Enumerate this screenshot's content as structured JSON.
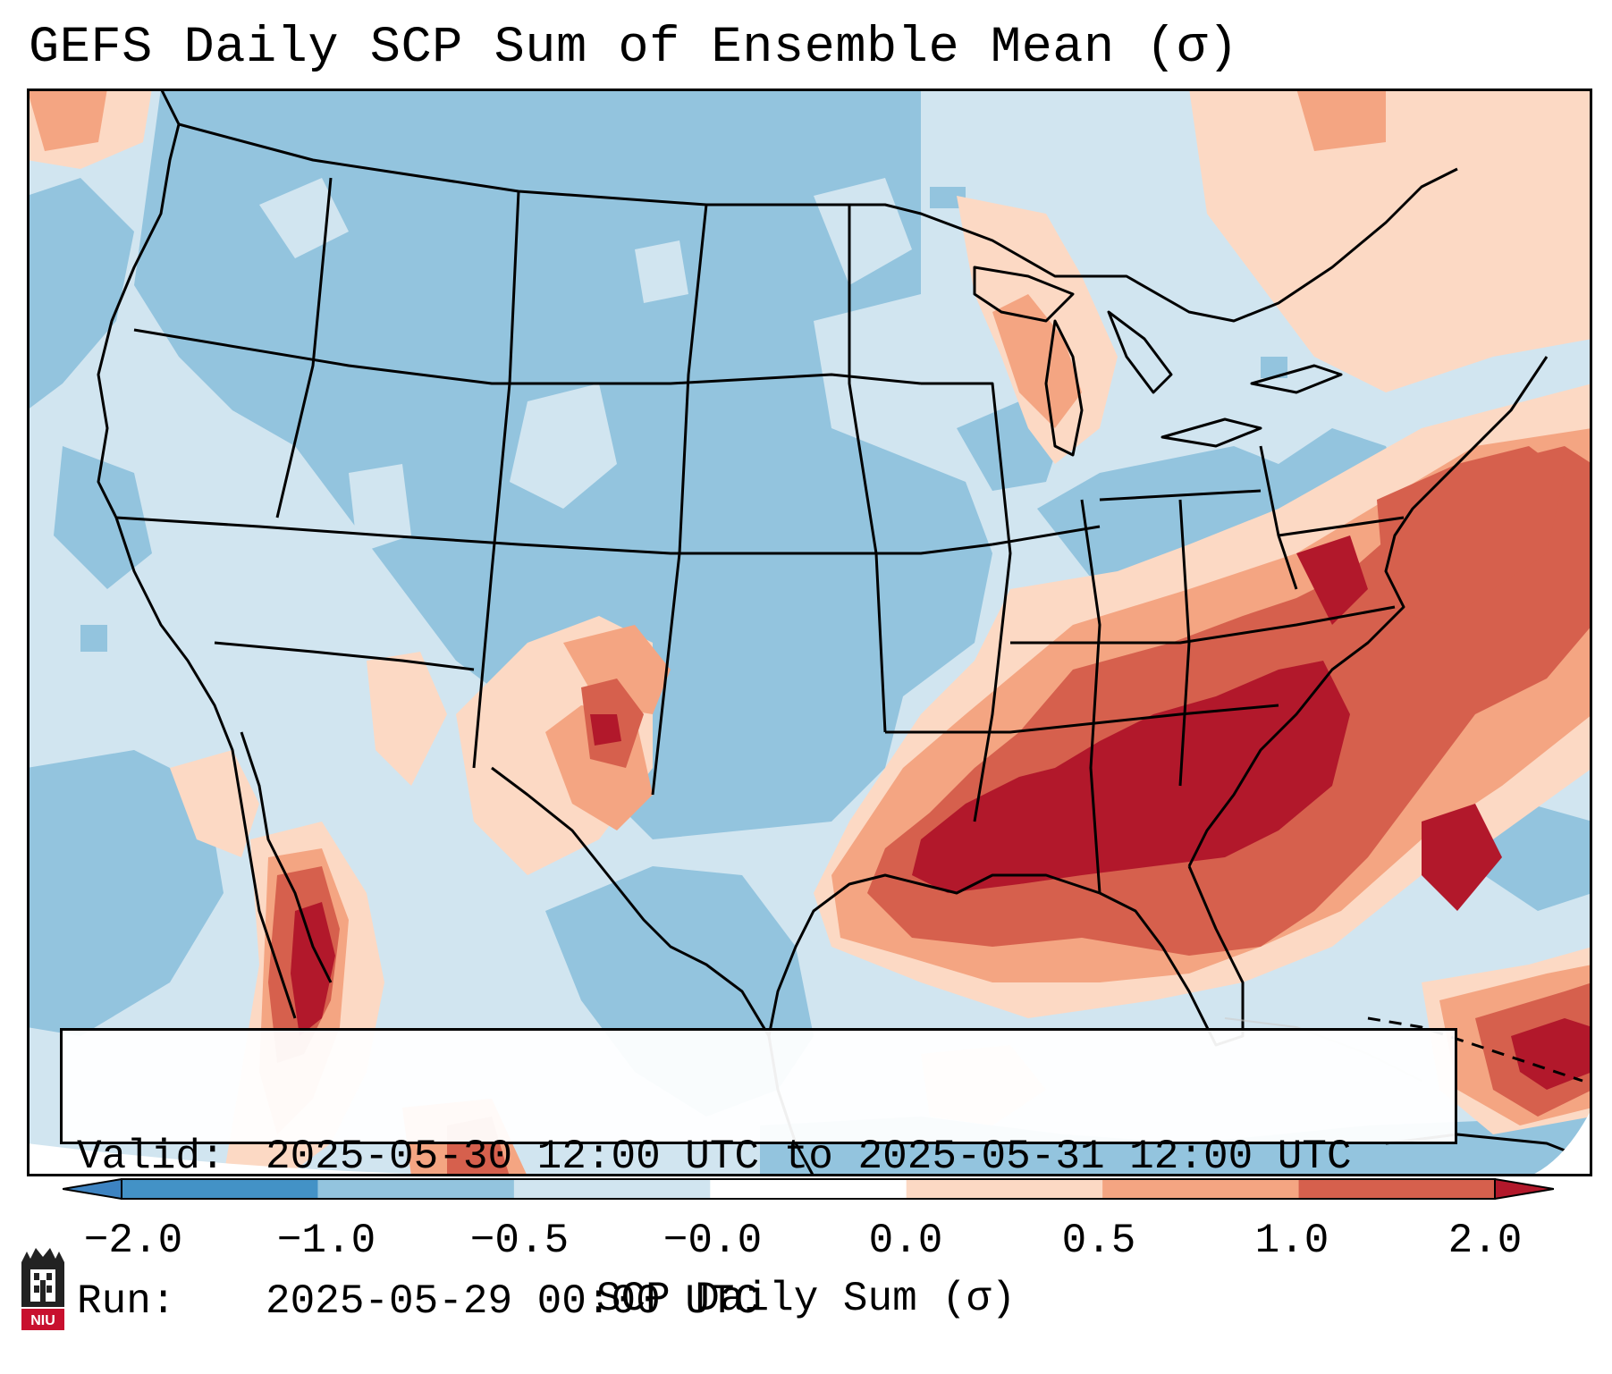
{
  "title": "GEFS Daily SCP Sum of Ensemble Mean (σ)",
  "info": {
    "valid_label": "Valid:",
    "valid_value": "2025-05-30 12:00 UTC to 2025-05-31 12:00 UTC",
    "run_label": "Run:",
    "run_value": "2025-05-29 00:00 UTC"
  },
  "colorbar": {
    "title": "SCP Daily Sum (σ)",
    "ticks": [
      "−2.0",
      "−1.0",
      "−0.5",
      "−0.0",
      "0.0",
      "0.5",
      "1.0",
      "2.0"
    ],
    "bins": [
      {
        "range": "< -2.0",
        "color": "#3d83c1"
      },
      {
        "range": "-2.0 to -1.0",
        "color": "#4392c6"
      },
      {
        "range": "-1.0 to -0.5",
        "color": "#93c4de"
      },
      {
        "range": "-0.5 to -0.0",
        "color": "#d1e5f0"
      },
      {
        "range": "-0.0 to 0.0",
        "color": "#ffffff"
      },
      {
        "range": "0.0 to 0.5",
        "color": "#fcd9c4"
      },
      {
        "range": "0.5 to 1.0",
        "color": "#f4a582"
      },
      {
        "range": "1.0 to 2.0",
        "color": "#d6604d"
      },
      {
        "range": "> 2.0",
        "color": "#b2182b"
      }
    ]
  },
  "legend_meaning": {
    "strong_negative": "#93c4de",
    "weak_negative": "#d1e5f0",
    "weak_positive": "#fcd9c4",
    "moderate_positive": "#f4a582",
    "strong_positive": "#d6604d",
    "extreme_positive": "#b2182b"
  },
  "logo": {
    "text": "NIU",
    "color": "#c8102e"
  }
}
